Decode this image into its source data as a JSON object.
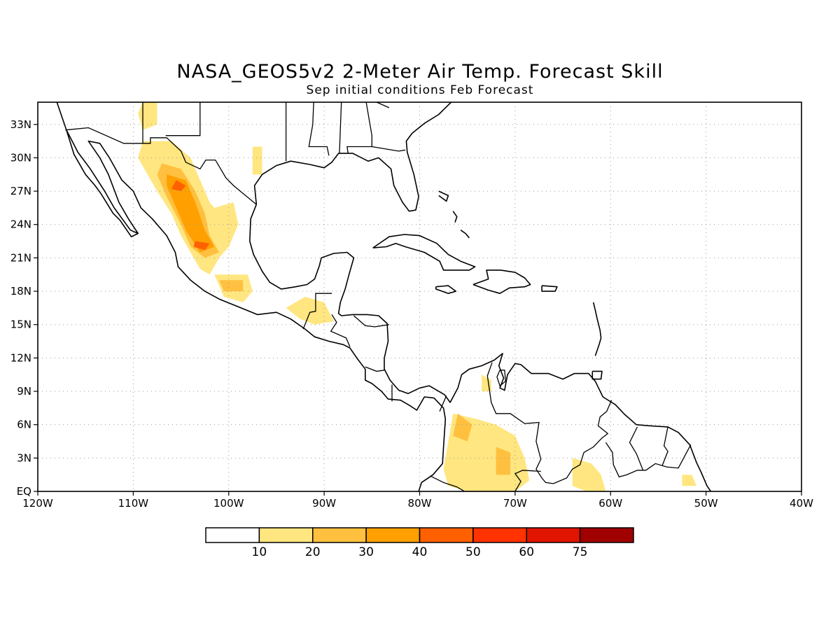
{
  "title": "NASA_GEOS5v2 2-Meter Air Temp. Forecast Skill",
  "subtitle": "Sep initial conditions  Feb Forecast",
  "map": {
    "lon_range": [
      -120,
      -40
    ],
    "lat_range": [
      0,
      35
    ],
    "lon_ticks": [
      {
        "value": -120,
        "label": "120W"
      },
      {
        "value": -110,
        "label": "110W"
      },
      {
        "value": -100,
        "label": "100W"
      },
      {
        "value": -90,
        "label": "90W"
      },
      {
        "value": -80,
        "label": "80W"
      },
      {
        "value": -70,
        "label": "70W"
      },
      {
        "value": -60,
        "label": "60W"
      },
      {
        "value": -50,
        "label": "50W"
      },
      {
        "value": -40,
        "label": "40W"
      }
    ],
    "lat_ticks": [
      {
        "value": 0,
        "label": "EQ"
      },
      {
        "value": 3,
        "label": "3N"
      },
      {
        "value": 6,
        "label": "6N"
      },
      {
        "value": 9,
        "label": "9N"
      },
      {
        "value": 12,
        "label": "12N"
      },
      {
        "value": 15,
        "label": "15N"
      },
      {
        "value": 18,
        "label": "18N"
      },
      {
        "value": 21,
        "label": "21N"
      },
      {
        "value": 24,
        "label": "24N"
      },
      {
        "value": 27,
        "label": "27N"
      },
      {
        "value": 30,
        "label": "30N"
      },
      {
        "value": 33,
        "label": "33N"
      }
    ],
    "grid": true
  },
  "colorbar": {
    "labels": [
      "10",
      "20",
      "30",
      "40",
      "50",
      "60",
      "75"
    ],
    "colors": [
      "#ffffff",
      "#ffe680",
      "#ffc040",
      "#ffa000",
      "#ff6000",
      "#ff3200",
      "#e11400",
      "#a00000"
    ]
  },
  "skill_regions": [
    {
      "level": 1,
      "pts": [
        [
          -109,
          35
        ],
        [
          -107.5,
          35
        ],
        [
          -107.5,
          33
        ],
        [
          -109,
          32.5
        ],
        [
          -109.5,
          34
        ]
      ]
    },
    {
      "level": 1,
      "pts": [
        [
          -109,
          31.5
        ],
        [
          -106,
          31.5
        ],
        [
          -104,
          30
        ],
        [
          -103,
          28
        ],
        [
          -102,
          26
        ],
        [
          -101.5,
          25.5
        ],
        [
          -99.5,
          26
        ],
        [
          -99,
          24
        ],
        [
          -100,
          22
        ],
        [
          -101,
          21
        ],
        [
          -102,
          19.5
        ],
        [
          -103,
          20
        ],
        [
          -104,
          21.5
        ],
        [
          -105,
          23
        ],
        [
          -106,
          25
        ],
        [
          -107.5,
          27
        ],
        [
          -108.5,
          28.5
        ],
        [
          -109.5,
          30
        ]
      ]
    },
    {
      "level": 1,
      "pts": [
        [
          -101.5,
          19.5
        ],
        [
          -98,
          19.5
        ],
        [
          -97.5,
          18
        ],
        [
          -98.5,
          17
        ],
        [
          -100.5,
          17.5
        ]
      ]
    },
    {
      "level": 1,
      "pts": [
        [
          -94,
          16.5
        ],
        [
          -92,
          17.5
        ],
        [
          -90,
          17
        ],
        [
          -89,
          15.3
        ],
        [
          -91,
          15
        ],
        [
          -92.5,
          15.5
        ]
      ]
    },
    {
      "level": 1,
      "pts": [
        [
          -97.5,
          31
        ],
        [
          -96.5,
          31
        ],
        [
          -96.5,
          28.5
        ],
        [
          -97.5,
          28.5
        ]
      ]
    },
    {
      "level": 1,
      "pts": [
        [
          -76.5,
          7
        ],
        [
          -74,
          6.5
        ],
        [
          -72,
          6
        ],
        [
          -70,
          5
        ],
        [
          -69,
          3
        ],
        [
          -68.5,
          1
        ],
        [
          -70,
          0
        ],
        [
          -75,
          0
        ],
        [
          -77,
          0.5
        ],
        [
          -77.5,
          2
        ],
        [
          -77,
          4.5
        ]
      ]
    },
    {
      "level": 1,
      "pts": [
        [
          -64,
          3
        ],
        [
          -62,
          2.5
        ],
        [
          -61,
          1.5
        ],
        [
          -60.5,
          0
        ],
        [
          -62.5,
          0
        ],
        [
          -64,
          0.5
        ]
      ]
    },
    {
      "level": 1,
      "pts": [
        [
          -73.5,
          10.5
        ],
        [
          -72.5,
          10
        ],
        [
          -72.5,
          9
        ],
        [
          -73.5,
          9
        ]
      ]
    },
    {
      "level": 1,
      "pts": [
        [
          -52.5,
          1.5
        ],
        [
          -51.5,
          1.5
        ],
        [
          -51,
          0.5
        ],
        [
          -52.5,
          0.5
        ]
      ]
    },
    {
      "level": 2,
      "pts": [
        [
          -107,
          29.5
        ],
        [
          -105,
          29
        ],
        [
          -103.5,
          27
        ],
        [
          -102.5,
          25
        ],
        [
          -102,
          23
        ],
        [
          -101,
          21.5
        ],
        [
          -102.5,
          21
        ],
        [
          -104,
          22
        ],
        [
          -105,
          24
        ],
        [
          -106.5,
          26.5
        ],
        [
          -107.5,
          28.5
        ]
      ]
    },
    {
      "level": 2,
      "pts": [
        [
          -101,
          19
        ],
        [
          -98.5,
          19
        ],
        [
          -98.5,
          18
        ],
        [
          -100.5,
          18
        ]
      ]
    },
    {
      "level": 2,
      "pts": [
        [
          -76,
          7
        ],
        [
          -74.5,
          6
        ],
        [
          -75,
          4.5
        ],
        [
          -76.5,
          5
        ]
      ]
    },
    {
      "level": 2,
      "pts": [
        [
          -72,
          4
        ],
        [
          -70.5,
          3.5
        ],
        [
          -70.5,
          1.5
        ],
        [
          -72,
          1.5
        ]
      ]
    },
    {
      "level": 3,
      "pts": [
        [
          -106.5,
          28.5
        ],
        [
          -104.5,
          28
        ],
        [
          -103.5,
          26
        ],
        [
          -102.5,
          23.5
        ],
        [
          -101.5,
          22
        ],
        [
          -103,
          21.5
        ],
        [
          -104.5,
          23.5
        ],
        [
          -105.5,
          25.5
        ],
        [
          -106.5,
          27.5
        ]
      ]
    },
    {
      "level": 4,
      "pts": [
        [
          -105.5,
          28
        ],
        [
          -104.5,
          27.5
        ],
        [
          -105,
          27
        ],
        [
          -106,
          27.2
        ]
      ]
    },
    {
      "level": 4,
      "pts": [
        [
          -103.5,
          22.5
        ],
        [
          -102,
          22.3
        ],
        [
          -102.5,
          21.7
        ],
        [
          -103.7,
          22
        ]
      ]
    }
  ]
}
